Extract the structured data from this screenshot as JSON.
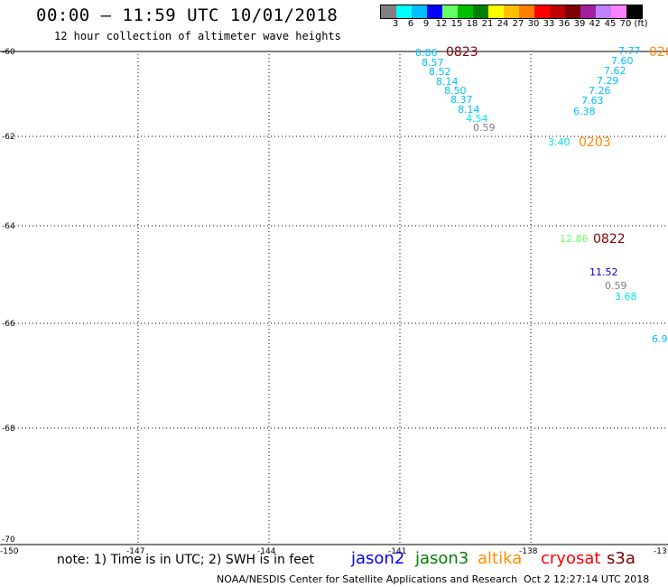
{
  "title": "00:00 – 11:59 UTC 10/01/2018",
  "subtitle": "12 hour collection of altimeter wave heights",
  "colorbar": {
    "colors": [
      "#808080",
      "#00ffff",
      "#00bfff",
      "#0000ff",
      "#66ff66",
      "#00bf00",
      "#008000",
      "#ffff00",
      "#ffbf00",
      "#ff8000",
      "#ff0000",
      "#bf0000",
      "#800000",
      "#a020a0",
      "#c080ff",
      "#ff80ff",
      "#000000"
    ],
    "labels": [
      "3",
      "6",
      "9",
      "12",
      "15",
      "18",
      "21",
      "24",
      "27",
      "30",
      "33",
      "36",
      "39",
      "42",
      "45",
      "70",
      "(ft)"
    ]
  },
  "latitudes": [
    "-60",
    "-62",
    "-64",
    "-66",
    "-68",
    "-70"
  ],
  "longitudes": [
    "-150",
    "-147",
    "-144",
    "-141",
    "-138",
    "-13"
  ],
  "tracks": [
    {
      "time": "0823",
      "color": "#800000"
    },
    {
      "time": "020",
      "color": "#ff8c00"
    },
    {
      "time": "0203",
      "color": "#ff8c00"
    },
    {
      "time": "0822",
      "color": "#800000"
    }
  ],
  "values": [
    {
      "v": "8.86",
      "c": "#00bfff"
    },
    {
      "v": "8.57",
      "c": "#00bfff"
    },
    {
      "v": "8.52",
      "c": "#00bfff"
    },
    {
      "v": "8.14",
      "c": "#00bfff"
    },
    {
      "v": "8.50",
      "c": "#00bfff"
    },
    {
      "v": "8.37",
      "c": "#00bfff"
    },
    {
      "v": "8.14",
      "c": "#00bfff"
    },
    {
      "v": "4.54",
      "c": "#00e5ee"
    },
    {
      "v": "0.59",
      "c": "#808080"
    },
    {
      "v": "7.77",
      "c": "#00bfff"
    },
    {
      "v": "7.60",
      "c": "#00bfff"
    },
    {
      "v": "7.62",
      "c": "#00bfff"
    },
    {
      "v": "7.29",
      "c": "#00bfff"
    },
    {
      "v": "7.26",
      "c": "#00bfff"
    },
    {
      "v": "7.63",
      "c": "#00bfff"
    },
    {
      "v": "6.38",
      "c": "#00bfff"
    },
    {
      "v": "3.40",
      "c": "#00e5ee"
    },
    {
      "v": "12.86",
      "c": "#66ff66"
    },
    {
      "v": "11.52",
      "c": "#0000cd"
    },
    {
      "v": "0.59",
      "c": "#808080"
    },
    {
      "v": "3.68",
      "c": "#00e5ee"
    },
    {
      "v": "6.9",
      "c": "#00bfff"
    }
  ],
  "note": "note: 1) Time is in UTC; 2) SWH is in feet",
  "satellites": [
    {
      "name": "jason2",
      "color": "#0000ff"
    },
    {
      "name": "jason3",
      "color": "#008000"
    },
    {
      "name": "altika",
      "color": "#ff8c00"
    },
    {
      "name": "cryosat",
      "color": "#ff0000"
    },
    {
      "name": "s3a",
      "color": "#800000"
    }
  ],
  "footer_left": "NOAA/NESDIS Center for Satellite Applications and Research",
  "footer_right": "Oct  2 12:27:14 UTC 2018"
}
